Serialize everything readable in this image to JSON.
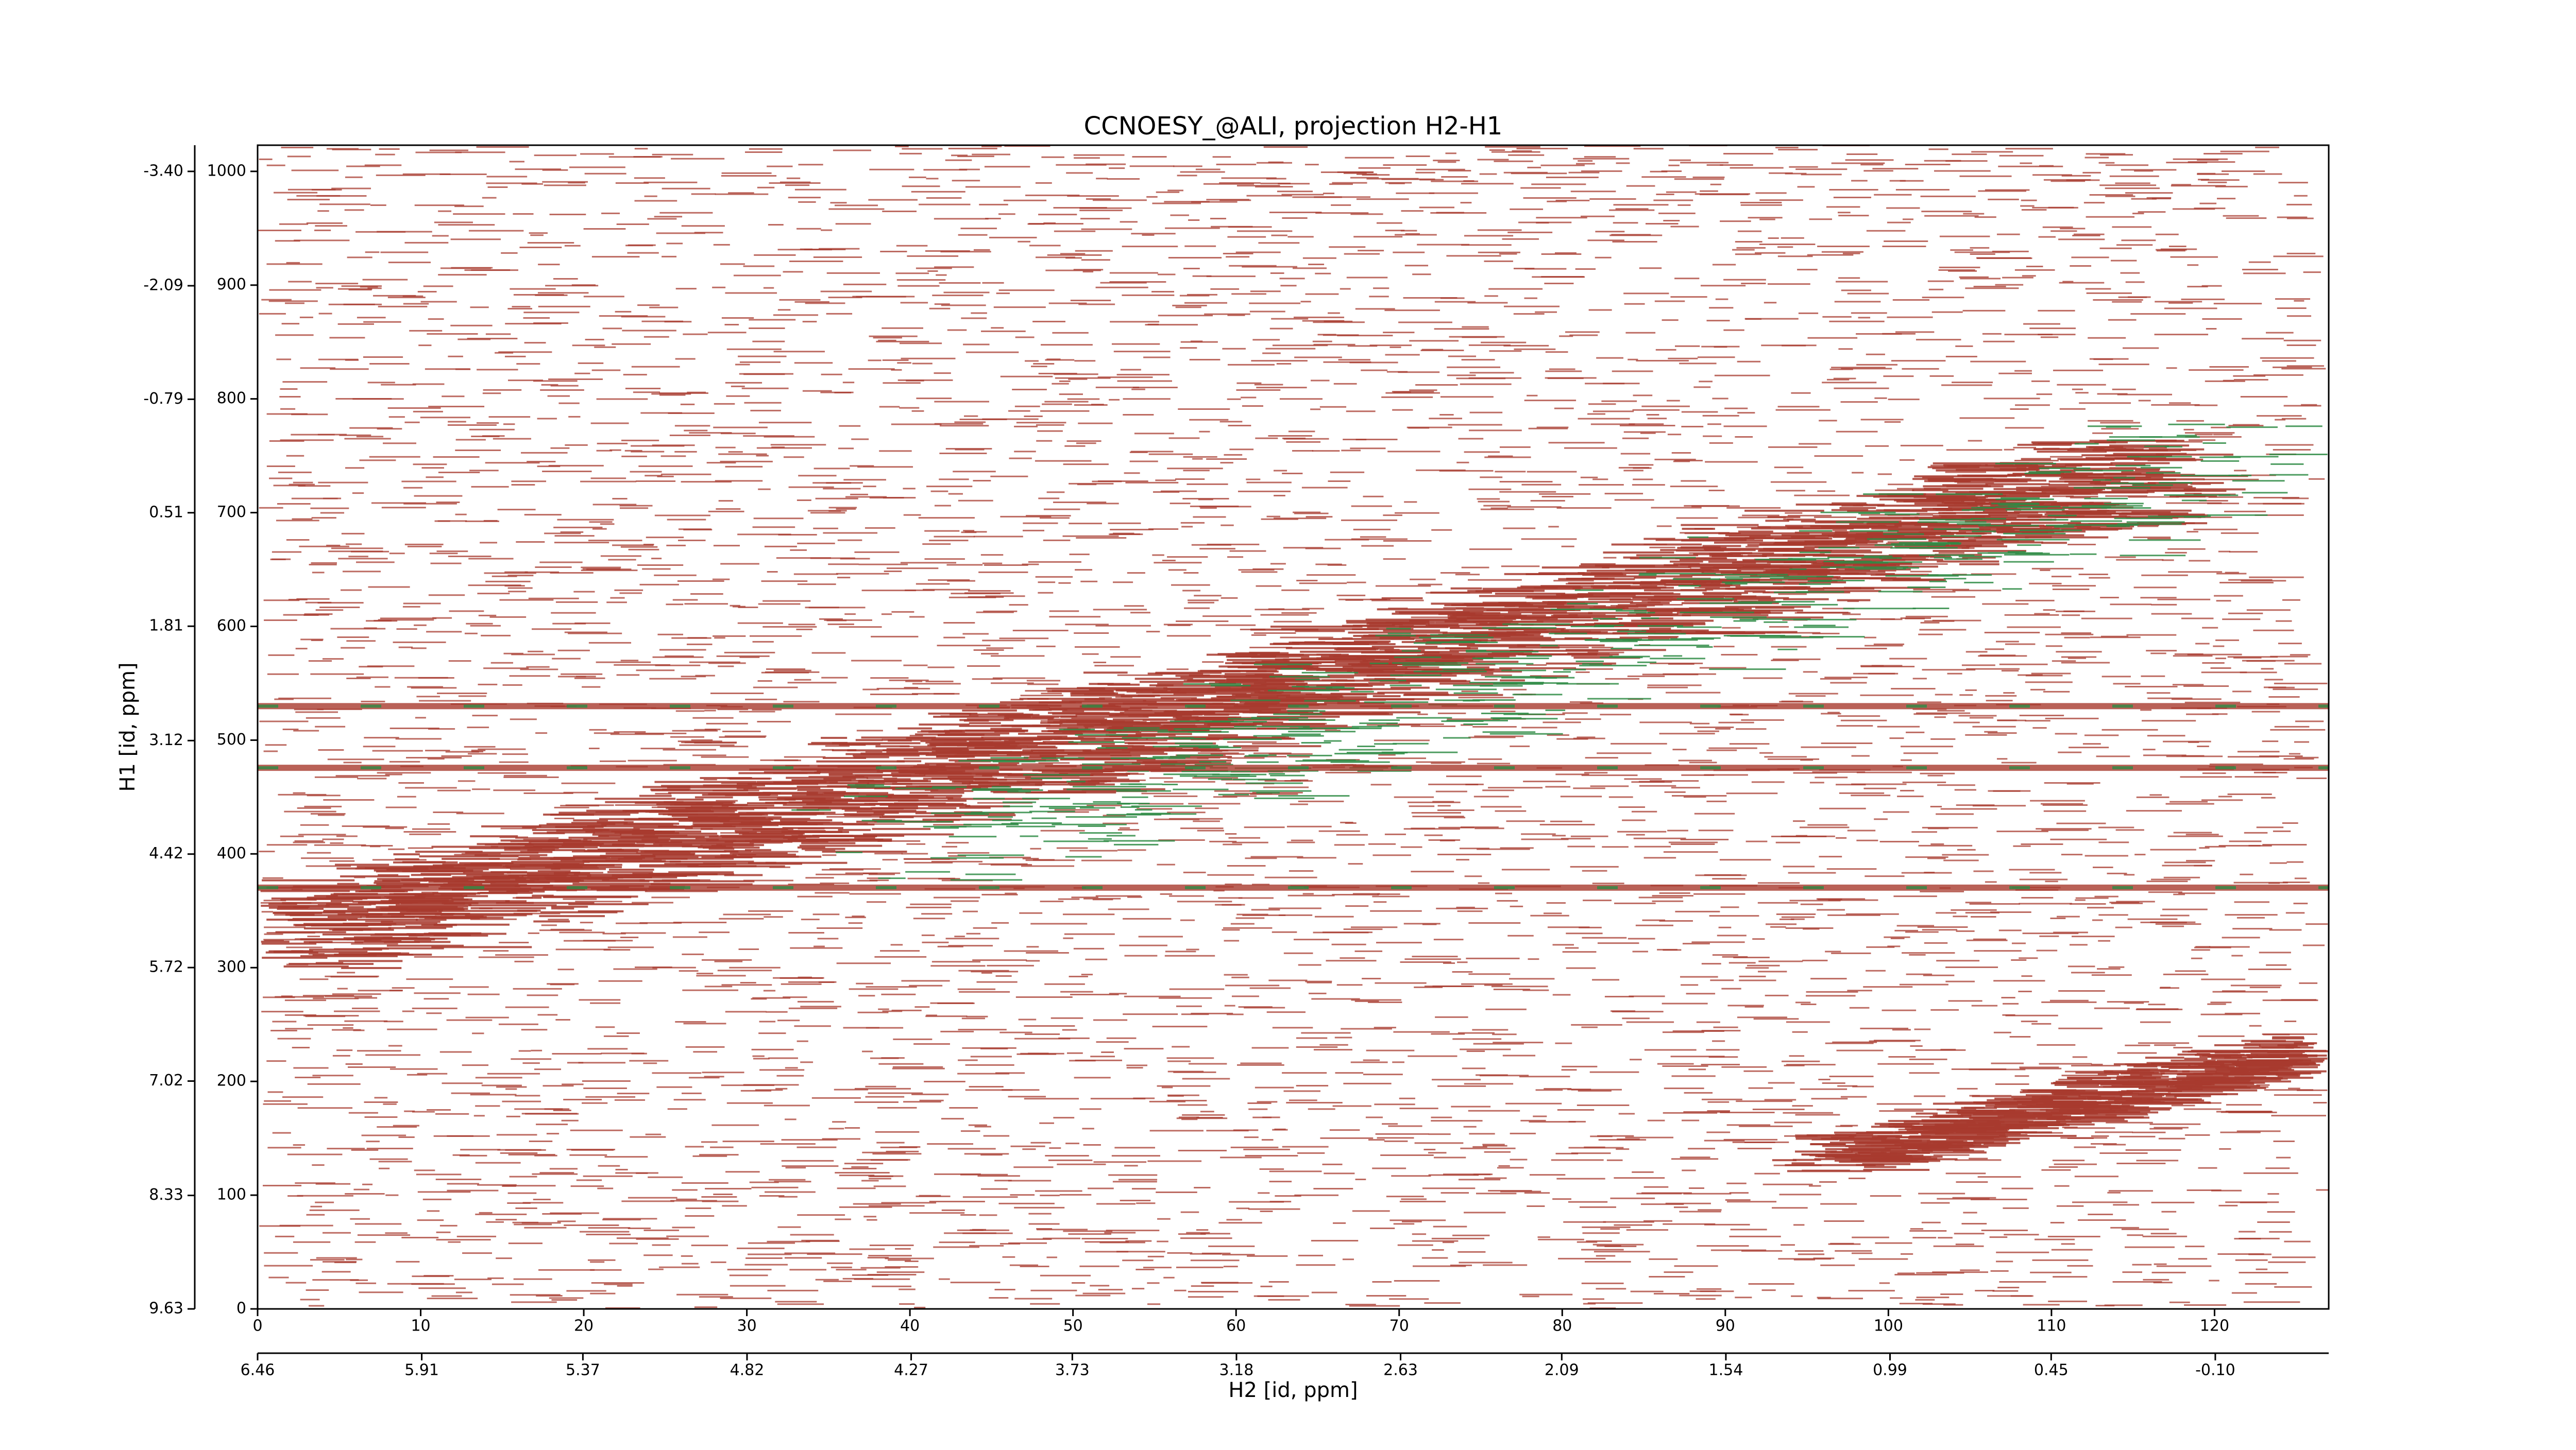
{
  "chart_data": {
    "type": "contour",
    "title": "CCNOESY_@ALI, projection H2-H1",
    "x_label": "H2 [id, ppm]",
    "y_label": "H1 [id, ppm]",
    "xlim": [
      0,
      127
    ],
    "xticks": [
      0,
      10,
      20,
      30,
      40,
      50,
      60,
      70,
      80,
      90,
      100,
      110,
      120
    ],
    "ylim": [
      0,
      1023
    ],
    "yticks": [
      0,
      100,
      200,
      300,
      400,
      500,
      600,
      700,
      800,
      900,
      1000
    ],
    "x2lim": [
      6.46,
      -0.48
    ],
    "x2ticks": [
      6.46,
      5.91,
      5.37,
      4.82,
      4.27,
      3.73,
      3.18,
      2.63,
      2.09,
      1.54,
      0.99,
      0.45,
      {
        "value": -0.1,
        "label": "-0.10"
      }
    ],
    "y2lim": [
      9.63,
      -3.7
    ],
    "y2ticks": [
      9.63,
      8.33,
      7.02,
      5.72,
      4.42,
      3.12,
      1.81,
      0.51,
      -0.79,
      -2.09,
      {
        "value": -3.4,
        "label": "-3.40"
      }
    ],
    "color": "#a83a2e",
    "negative_color": "#2e8b45"
  }
}
